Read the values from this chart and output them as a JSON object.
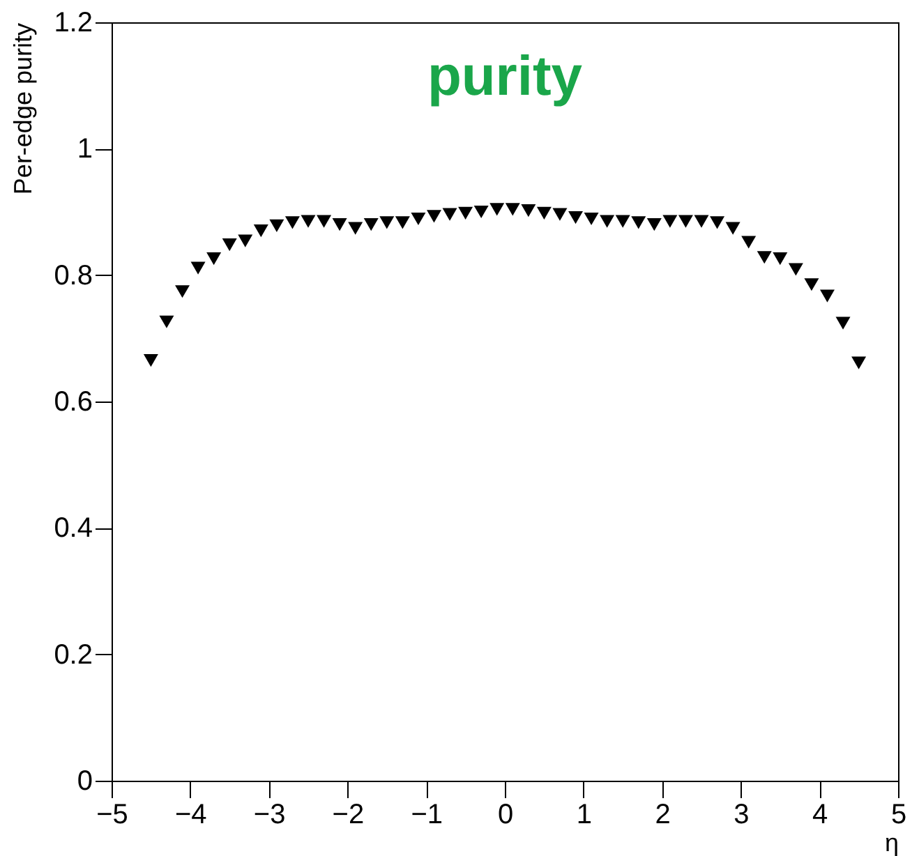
{
  "chart_data": {
    "type": "scatter",
    "title": "purity",
    "xlabel": "η",
    "ylabel": "Per-edge purity",
    "x": [
      -4.5,
      -4.3,
      -4.1,
      -3.9,
      -3.7,
      -3.5,
      -3.3,
      -3.1,
      -2.9,
      -2.7,
      -2.5,
      -2.3,
      -2.1,
      -1.9,
      -1.7,
      -1.5,
      -1.3,
      -1.1,
      -0.9,
      -0.7,
      -0.5,
      -0.3,
      -0.1,
      0.1,
      0.3,
      0.5,
      0.7,
      0.9,
      1.1,
      1.3,
      1.5,
      1.7,
      1.9,
      2.1,
      2.3,
      2.5,
      2.7,
      2.9,
      3.1,
      3.3,
      3.5,
      3.7,
      3.9,
      4.1,
      4.3,
      4.5
    ],
    "series": [
      {
        "color": "#000000",
        "values": [
          0.665,
          0.726,
          0.774,
          0.811,
          0.826,
          0.848,
          0.854,
          0.87,
          0.878,
          0.883,
          0.885,
          0.885,
          0.88,
          0.874,
          0.88,
          0.883,
          0.883,
          0.889,
          0.893,
          0.896,
          0.898,
          0.9,
          0.904,
          0.904,
          0.902,
          0.898,
          0.896,
          0.891,
          0.889,
          0.885,
          0.885,
          0.883,
          0.88,
          0.885,
          0.885,
          0.885,
          0.883,
          0.874,
          0.852,
          0.828,
          0.826,
          0.809,
          0.785,
          0.767,
          0.724,
          0.661
        ]
      }
    ],
    "xlim": [
      -5,
      5
    ],
    "xticks": [
      -5,
      -4,
      -3,
      -2,
      -1,
      0,
      1,
      2,
      3,
      4,
      5
    ],
    "ylim": [
      0,
      1.2
    ],
    "yticks": [
      0,
      0.2,
      0.4,
      0.6,
      0.8,
      1,
      1.2
    ],
    "grid": false,
    "legend": false,
    "marker": "triangle"
  }
}
